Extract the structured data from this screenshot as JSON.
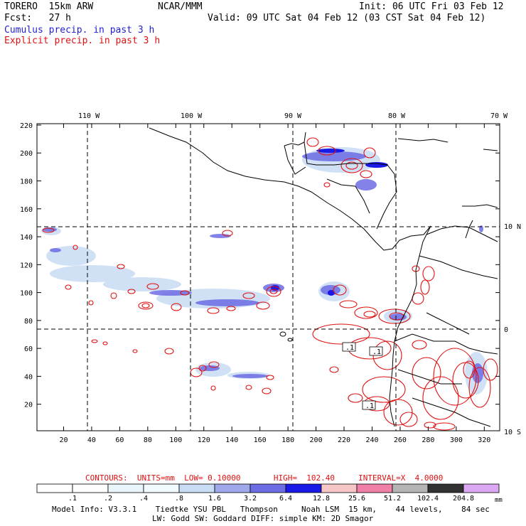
{
  "header": {
    "line1_left": "TORERO  15km ARW",
    "line1_center": "NCAR/MMM",
    "line1_right": "Init: 06 UTC Fri 03 Feb 12",
    "line2_left": "Fcst:   27 h",
    "line2_right": "Valid: 09 UTC Sat 04 Feb 12 (03 CST Sat 04 Feb 12)",
    "field1": "Cumulus precip. in past 3 h",
    "field2": "Explicit precip. in past 3 h"
  },
  "map": {
    "lon_labels_top": [
      "110 W",
      "100 W",
      "90 W",
      "80 W",
      "70 W"
    ],
    "lat_labels_right": [
      "10 N",
      "0",
      "10 S"
    ],
    "x_ticks": [
      "20",
      "40",
      "60",
      "80",
      "100",
      "120",
      "140",
      "160",
      "180",
      "200",
      "220",
      "240",
      "260",
      "280",
      "300",
      "320"
    ],
    "y_ticks": [
      "20",
      "40",
      "60",
      "80",
      "100",
      "120",
      "140",
      "160",
      "180",
      "200",
      "220"
    ],
    "contour_labels": [
      ".1",
      ".1",
      ".1"
    ]
  },
  "footer": {
    "contours": "CONTOURS:  UNITS=mm  LOW= 0.10000       HIGH=  102.40     INTERVAL=X  4.0000",
    "colorbar_labels": [
      ".1",
      ".2",
      ".4",
      ".8",
      "1.6",
      "3.2",
      "6.4",
      "12.8",
      "25.6",
      "51.2",
      "102.4",
      "204.8"
    ],
    "colorbar_units": "mm",
    "colorbar_colors": [
      "#ffffff",
      "#ffffff",
      "#e8f6fb",
      "#f2fbff",
      "#c8dcf4",
      "#a0a8ec",
      "#6c6ce4",
      "#1a1ae8",
      "#f6c6c6",
      "#f080a8",
      "#b4b4b4",
      "#323232",
      "#dca8f4"
    ],
    "info1": "Model Info: V3.3.1    Tiedtke YSU PBL   Thompson     Noah LSM  15 km,    44 levels,    84 sec",
    "info2": "LW: Godd SW: Goddard DIFF: simple KM: 2D Smagor"
  }
}
